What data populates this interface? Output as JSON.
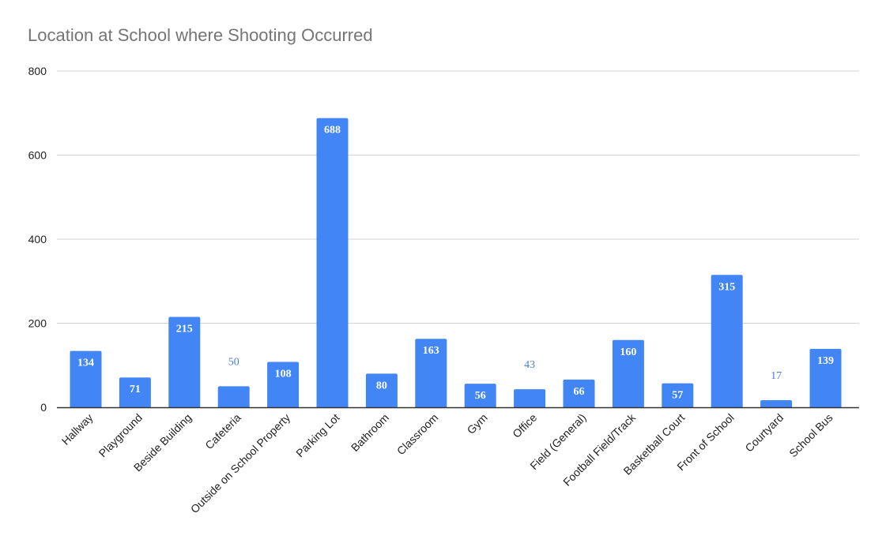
{
  "chart_data": {
    "type": "bar",
    "title": "Location at School where Shooting Occurred",
    "xlabel": "",
    "ylabel": "",
    "categories": [
      "Hallway",
      "Playground",
      "Beside Building",
      "Cafeteria",
      "Outside on School Property",
      "Parking Lot",
      "Bathroom",
      "Classroom",
      "Gym",
      "Office",
      "Field (General)",
      "Football Field/Track",
      "Basketball Court",
      "Front of School",
      "Courtyard",
      "School Bus"
    ],
    "values": [
      134,
      71,
      215,
      50,
      108,
      688,
      80,
      163,
      56,
      43,
      66,
      160,
      57,
      315,
      17,
      139
    ],
    "ylim": [
      0,
      800
    ],
    "yticks": [
      0,
      200,
      400,
      600,
      800
    ],
    "grid": true,
    "legend": "none",
    "bar_color": "#4285f4",
    "grid_color": "#d3d3d3",
    "axis_color": "#333333"
  }
}
